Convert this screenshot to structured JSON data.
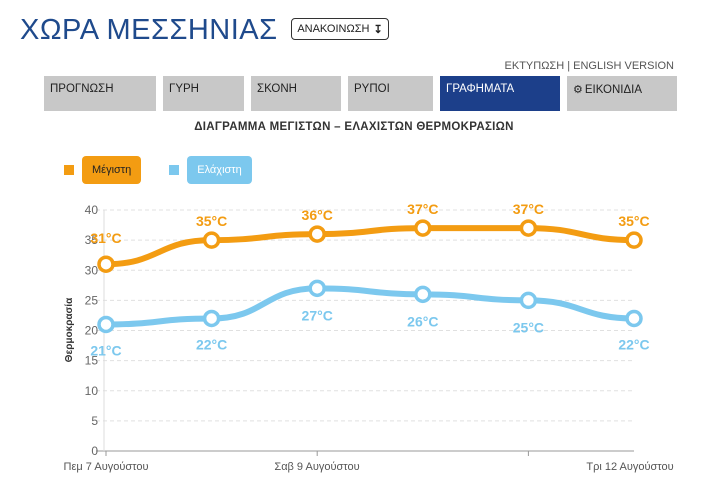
{
  "header": {
    "title": "ΧΩΡΑ ΜΕΣΣΗΝΙΑΣ",
    "announce_label": "ΑΝΑΚΟΙΝΩΣΗ",
    "announce_icon": "arrow-down-icon",
    "print_label": "ΕΚΤΥΠΩΣΗ",
    "separator": "|",
    "english_label": "ENGLISH VERSION"
  },
  "tabs": [
    {
      "label": "ΠΡΟΓΝΩΣΗ",
      "active": false
    },
    {
      "label": "ΓΥΡΗ",
      "active": false
    },
    {
      "label": "ΣΚΟΝΗ",
      "active": false
    },
    {
      "label": "ΡΥΠΟΙ",
      "active": false
    },
    {
      "label": "ΓΡΑΦΗΜΑΤΑ",
      "active": true
    },
    {
      "label": "ΕΙΚΟΝΙΔΙΑ",
      "active": false,
      "icon": "gear-icon"
    }
  ],
  "colors": {
    "title": "#1f4a8c",
    "active_tab": "#1c3f8a",
    "tab": "#c8c8c8",
    "max_series": "#f39c12",
    "min_series": "#7cc8ee"
  },
  "chart_data": {
    "type": "line",
    "title": "ΔΙΑΓΡΑΜΜΑ ΜΕΓΙΣΤΩΝ – ΕΛΑΧΙΣΤΩΝ ΘΕΡΜΟΚΡΑΣΙΩΝ",
    "ylabel": "Θερμοκρασία",
    "xlabel": "",
    "ylim": [
      0,
      40
    ],
    "yticks": [
      0,
      5,
      10,
      15,
      20,
      25,
      30,
      35,
      40
    ],
    "x_tick_labels": [
      "Πεμ 7 Αυγούστου",
      "Σαβ 9 Αυγούστου",
      "Τρι 12 Αυγούστου"
    ],
    "legend_position": "top-left",
    "grid": true,
    "series": [
      {
        "name": "Μέγιστη",
        "color": "#f39c12",
        "values": [
          31,
          35,
          36,
          37,
          37,
          35
        ],
        "labels": [
          "31°C",
          "35°C",
          "36°C",
          "37°C",
          "37°C",
          "35°C"
        ]
      },
      {
        "name": "Ελάχιστη",
        "color": "#7cc8ee",
        "values": [
          21,
          22,
          27,
          26,
          25,
          22
        ],
        "labels": [
          "21°C",
          "22°C",
          "27°C",
          "26°C",
          "25°C",
          "22°C"
        ]
      }
    ]
  }
}
